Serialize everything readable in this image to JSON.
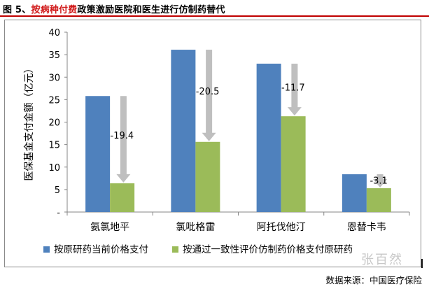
{
  "header": {
    "prefix": "图 5、",
    "highlight": "按病种付费",
    "rest": "政策激励医院和医生进行仿制药替代"
  },
  "chart_data": {
    "type": "bar",
    "categories": [
      "氨氯地平",
      "氯吡格雷",
      "阿托伐他汀",
      "恩替卡韦"
    ],
    "series": [
      {
        "name": "按原研药当前价格支付",
        "values": [
          25.8,
          36.1,
          33.0,
          8.4
        ],
        "color": "#4f81bd"
      },
      {
        "name": "按通过一致性评价仿制药价格支付原研药",
        "values": [
          6.4,
          15.6,
          21.3,
          5.3
        ],
        "color": "#9bbb59"
      }
    ],
    "annotations": [
      "-19.4",
      "-20.5",
      "-11.7",
      "-3.1"
    ],
    "ylabel": "医保基金支付金额（亿元）",
    "ylim": [
      0,
      40
    ],
    "yticks": [
      "-",
      "5",
      "10",
      "15",
      "20",
      "25",
      "30",
      "35",
      "40"
    ],
    "arrow_color": "#bfbfbf",
    "legend_position": "bottom",
    "grid": false
  },
  "footer": {
    "source": "数据来源：中国医疗保险",
    "watermark": "张百然"
  }
}
